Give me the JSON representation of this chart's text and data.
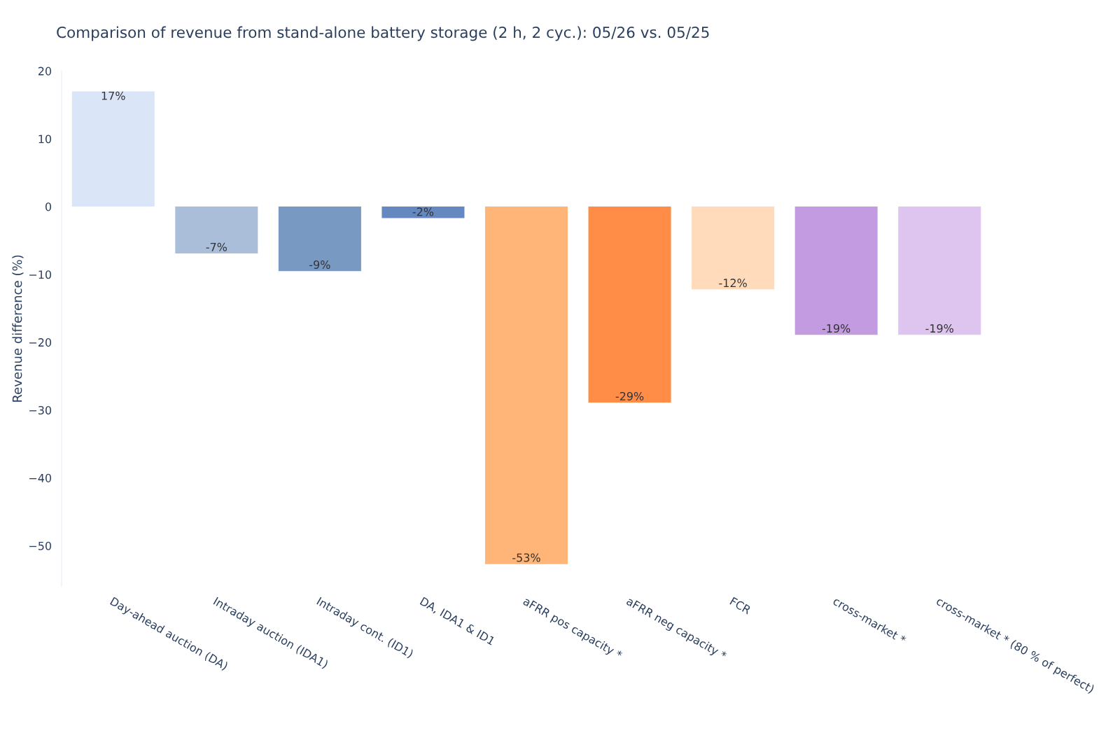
{
  "chart_data": {
    "type": "bar",
    "title": "Comparison of revenue from stand-alone battery storage (2 h, 2 cyc.): 05/26 vs. 05/25",
    "ylabel": "Revenue difference (%)",
    "categories": [
      "Day-ahead auction (DA)",
      "Intraday auction (IDA1)",
      "Intraday cont. (ID1)",
      "DA, IDA1 & ID1",
      "aFRR pos capacity *",
      "aFRR neg capacity *",
      "FCR",
      "cross-market *",
      "cross-market * (80 % of perfect)"
    ],
    "values": [
      17.0,
      -6.9,
      -9.5,
      -1.7,
      -52.7,
      -28.9,
      -12.2,
      -18.9,
      -18.9
    ],
    "value_labels": [
      "17%",
      "-7%",
      "-9%",
      "-2%",
      "-53%",
      "-29%",
      "-12%",
      "-19%",
      "-19%"
    ],
    "colors": [
      "#dae5f7",
      "#aabdd9",
      "#7799c2",
      "#6688c0",
      "#ffb577",
      "#ff8c47",
      "#ffdbbb",
      "#c39be0",
      "#dec5f0"
    ],
    "ylim": [
      -56,
      20
    ],
    "yticks": [
      {
        "value": -50,
        "label": "−50"
      },
      {
        "value": -40,
        "label": "−40"
      },
      {
        "value": -30,
        "label": "−30"
      },
      {
        "value": -20,
        "label": "−20"
      },
      {
        "value": -10,
        "label": "−10"
      },
      0,
      10,
      20
    ],
    "grid": false,
    "legend": false
  }
}
